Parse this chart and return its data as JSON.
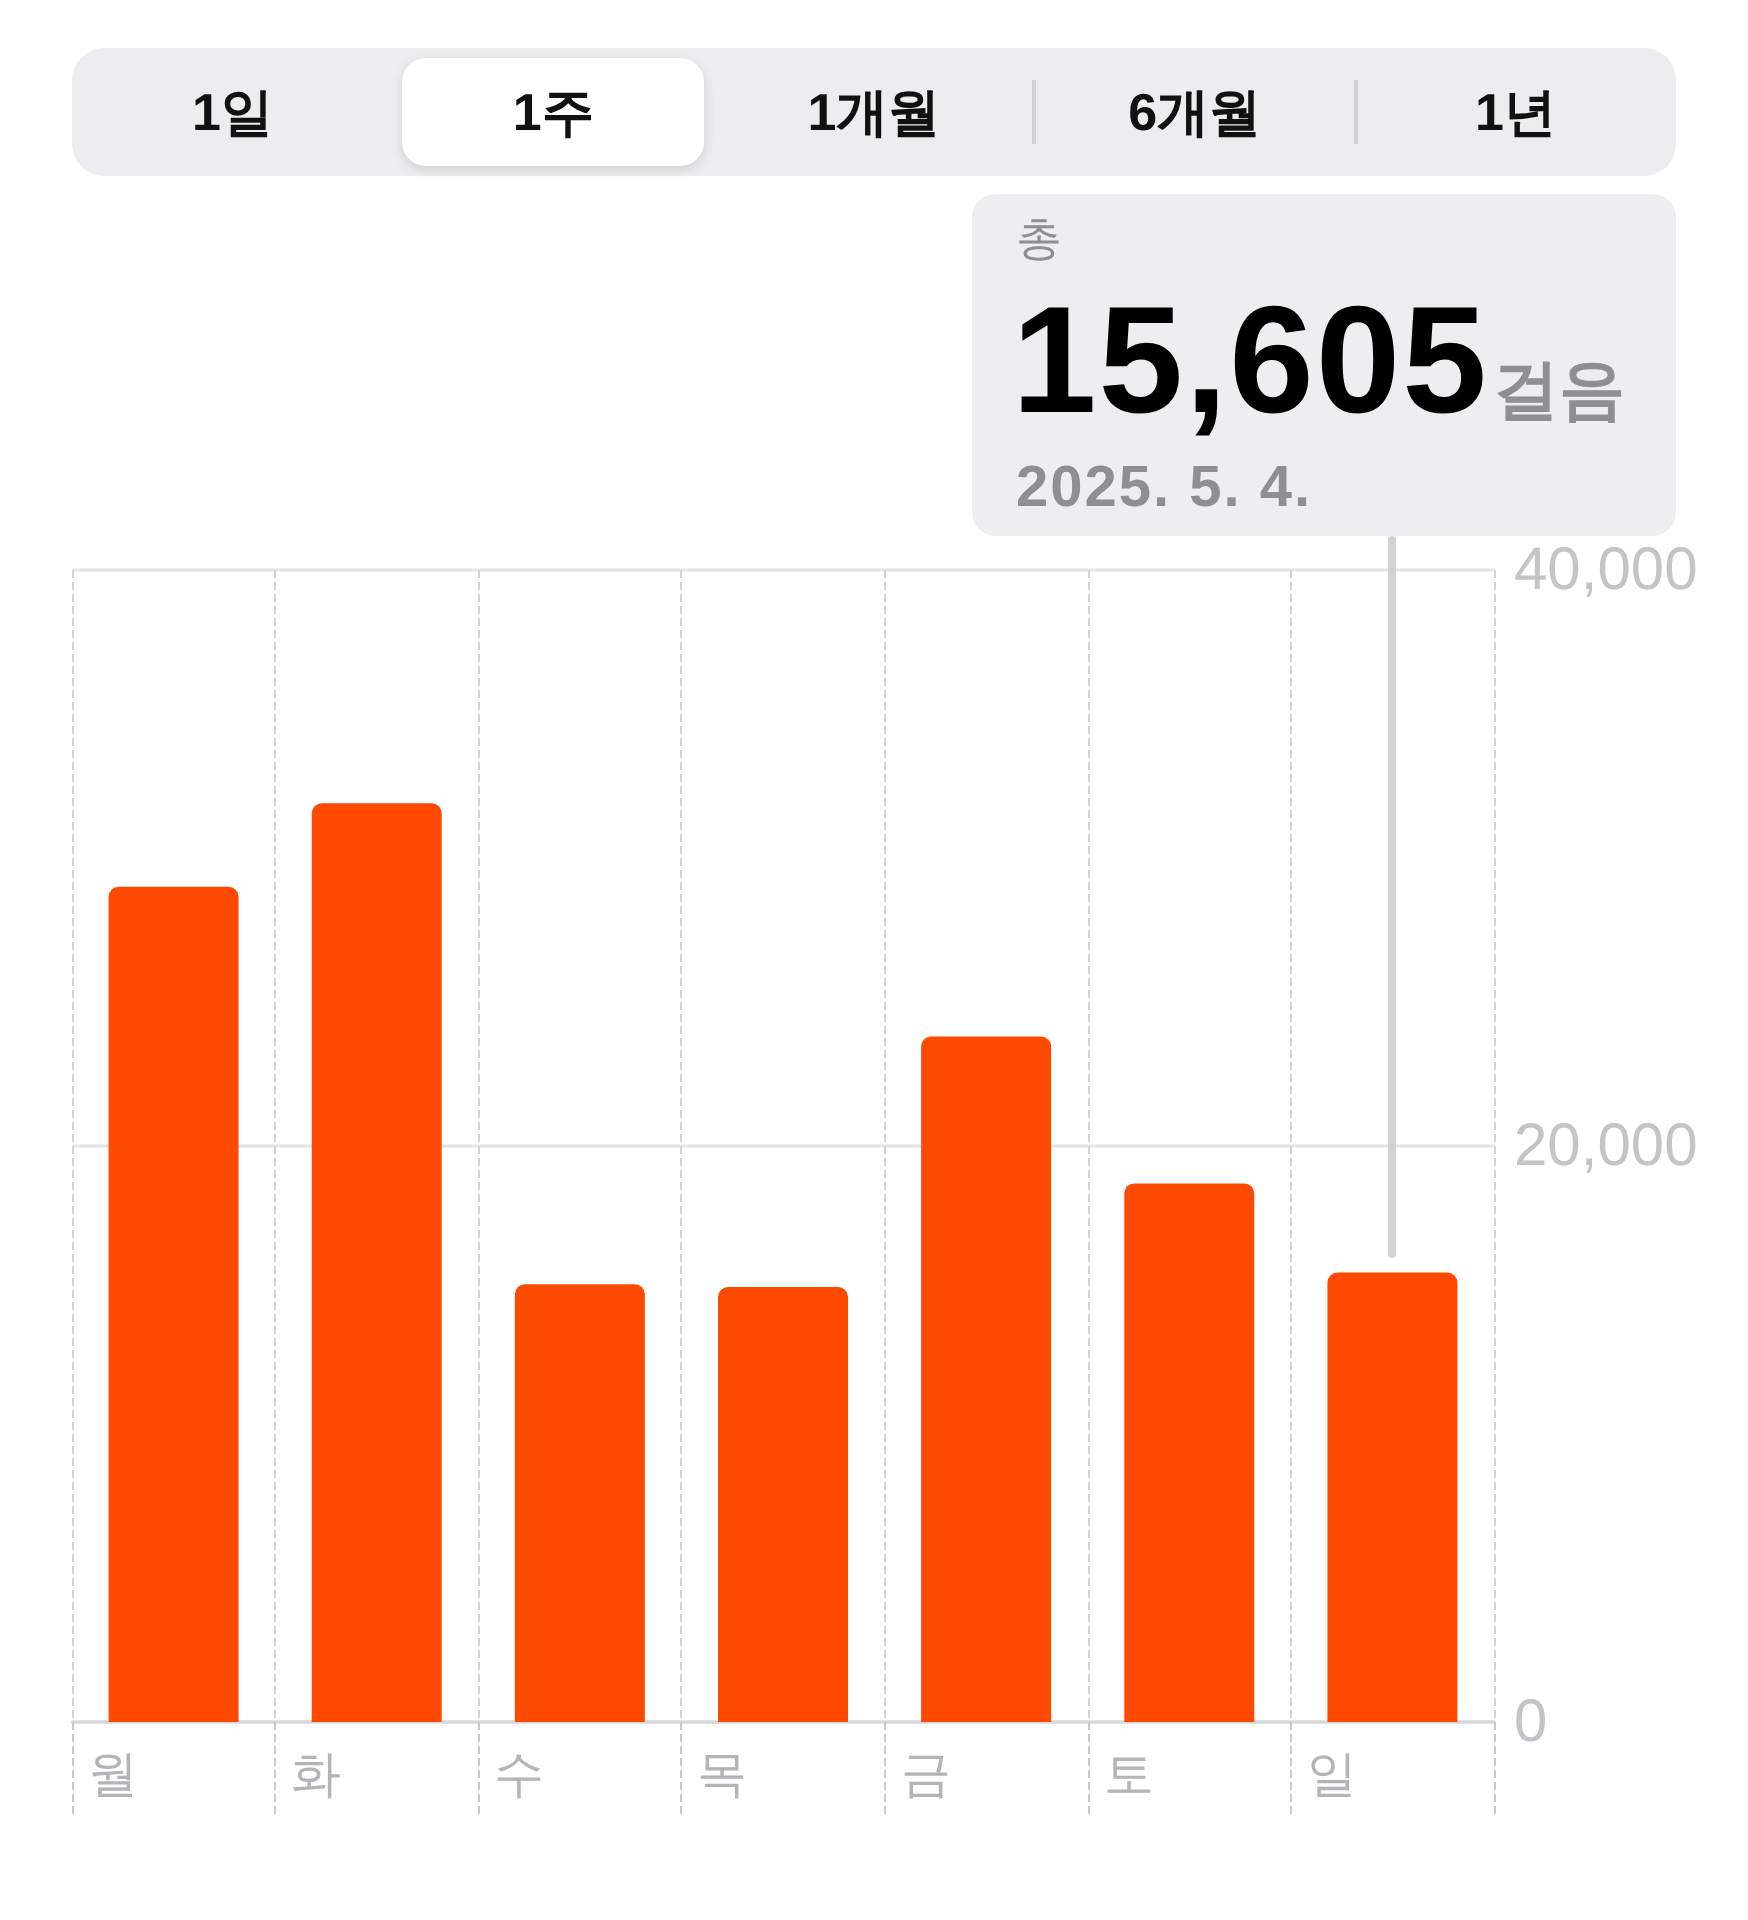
{
  "chart_data": {
    "type": "bar",
    "categories": [
      "월",
      "화",
      "수",
      "목",
      "금",
      "토",
      "일"
    ],
    "values": [
      29000,
      31900,
      15200,
      15100,
      23800,
      18700,
      15605
    ],
    "color": "#fe4a00",
    "ylim": [
      0,
      40000
    ],
    "yticks": [
      0,
      {
        "value": 20000,
        "label": "20,000"
      },
      {
        "value": 40000,
        "label": "40,000"
      }
    ],
    "grid": true,
    "annotations": [
      "1일",
      "1주",
      "1개월",
      "6개월",
      "1년",
      "총",
      "15,605",
      "걸음",
      "2025. 5. 4."
    ]
  }
}
